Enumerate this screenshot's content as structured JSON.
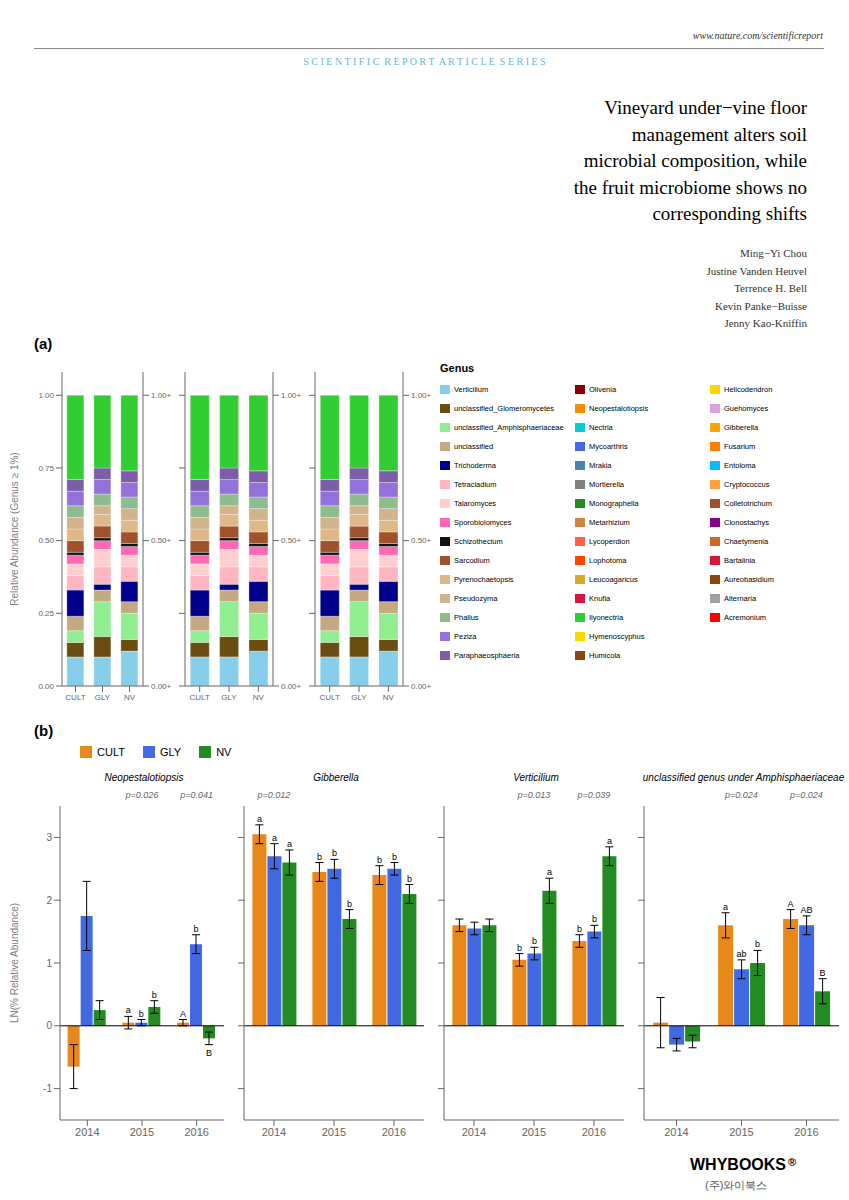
{
  "title": "Vineyard under−vine floor\nmanagement alters soil\nmicrobial composition, while\nthe fruit microbiome shows no\ncorresponding shifts",
  "subtitle": "S C I E N T I F I C  R E P O R T  A R T I C L E  S E R I E S",
  "annotations": {
    "url": "www.nature.com/scientificreport",
    "authors": [
      "Ming−Yi Chou",
      "Justine Vanden Heuvel",
      "Terrence H. Bell",
      "Kevin Panke−Buisse",
      "Jenny Kao-Kniffin"
    ],
    "panel_labels": [
      "(a)",
      "(b)"
    ],
    "branding": [
      "WHYBOOKS",
      "®",
      "(주)와이북스"
    ]
  },
  "genus_legend": {
    "title": "Genus",
    "columns": [
      [
        {
          "name": "Verticilium",
          "color": "#87CEEB"
        },
        {
          "name": "unclassified_Glomeromycetes",
          "color": "#6B4C11"
        },
        {
          "name": "unclassified_Amphisphaeriaceae",
          "color": "#90EE90"
        },
        {
          "name": "unclassified",
          "color": "#C4A882"
        },
        {
          "name": "Trichoderma",
          "color": "#00008B"
        },
        {
          "name": "Tetracladium",
          "color": "#FFB6C1"
        },
        {
          "name": "Talaromyces",
          "color": "#FFCFCF"
        },
        {
          "name": "Sporobiolomyces",
          "color": "#FF69B4"
        },
        {
          "name": "Schizothecium",
          "color": "#111111"
        },
        {
          "name": "Sarcodium",
          "color": "#A0522D"
        },
        {
          "name": "Pyrenochaetopsis",
          "color": "#DEB887"
        },
        {
          "name": "Pseudozyma",
          "color": "#D2B48C"
        },
        {
          "name": "Phallus",
          "color": "#8FBC8F"
        },
        {
          "name": "Peziza",
          "color": "#9370DB"
        },
        {
          "name": "Paraphaeosphaeria",
          "color": "#7B5EA7"
        }
      ],
      [
        {
          "name": "Olivenia",
          "color": "#8B0000"
        },
        {
          "name": "Neopestalotiopsis",
          "color": "#FF8C00"
        },
        {
          "name": "Nectria",
          "color": "#00CED1"
        },
        {
          "name": "Mycoarthris",
          "color": "#4169E1"
        },
        {
          "name": "Mrakia",
          "color": "#4682B4"
        },
        {
          "name": "Mortierella",
          "color": "#808080"
        },
        {
          "name": "Monographella",
          "color": "#228B22"
        },
        {
          "name": "Metarhizium",
          "color": "#CD853F"
        },
        {
          "name": "Lycoperdion",
          "color": "#FF6347"
        },
        {
          "name": "Lophotoma",
          "color": "#FF4500"
        },
        {
          "name": "Leucoagaricus",
          "color": "#DDA830"
        },
        {
          "name": "Knufia",
          "color": "#DC143C"
        },
        {
          "name": "Ilyonectria",
          "color": "#32CD32"
        },
        {
          "name": "Hymenoscyphus",
          "color": "#FFD700"
        },
        {
          "name": "Humicola",
          "color": "#8B4513"
        }
      ],
      [
        {
          "name": "Helicodendron",
          "color": "#FFD700"
        },
        {
          "name": "Guehomyces",
          "color": "#DDA0DD"
        },
        {
          "name": "Gibberella",
          "color": "#FFA500"
        },
        {
          "name": "Fusarium",
          "color": "#FF8000"
        },
        {
          "name": "Entoloma",
          "color": "#00BFFF"
        },
        {
          "name": "Cryptococcus",
          "color": "#FFA040"
        },
        {
          "name": "Colletotrichum",
          "color": "#A0522D"
        },
        {
          "name": "Clonostachys",
          "color": "#8B008B"
        },
        {
          "name": "Chaetymenia",
          "color": "#D2691E"
        },
        {
          "name": "Bartalinia",
          "color": "#DC143C"
        },
        {
          "name": "Aureobasidium",
          "color": "#8B4513"
        },
        {
          "name": "Alternaria",
          "color": "#A0A0A0"
        },
        {
          "name": "Acremonium",
          "color": "#FF0000"
        }
      ]
    ]
  },
  "chart_data": [
    {
      "type": "bar",
      "stacked": true,
      "categories": [
        "CULT",
        "GLY",
        "NV"
      ],
      "ylabel": "Relative Abundance (Genus ≥ 1%)",
      "ylim": [
        0,
        1.08
      ],
      "yticks": [
        {
          "value": 0,
          "label": "0.00"
        },
        {
          "value": 0.25,
          "label": "0.25"
        },
        {
          "value": 0.5,
          "label": "0.50"
        },
        {
          "value": 0.75,
          "label": "0.75"
        },
        {
          "value": 1,
          "label": "1.00"
        }
      ],
      "y2lim": [
        0,
        1.08
      ],
      "y2ticks": [
        {
          "value": 1,
          "label": "1.00+"
        },
        {
          "value": 0.5,
          "label": "0.50+"
        },
        {
          "value": 0,
          "label": "0.00+"
        }
      ],
      "series": [
        {
          "color": "#87CEEB",
          "values": [
            0.1,
            0.1,
            0.12
          ]
        },
        {
          "color": "#6B4C11",
          "values": [
            0.05,
            0.07,
            0.04
          ]
        },
        {
          "color": "#90EE90",
          "values": [
            0.04,
            0.12,
            0.09
          ]
        },
        {
          "color": "#C4A882",
          "values": [
            0.05,
            0.04,
            0.04
          ]
        },
        {
          "color": "#00008B",
          "values": [
            0.09,
            0.02,
            0.07
          ]
        },
        {
          "color": "#FFB6C1",
          "values": [
            0.05,
            0.06,
            0.05
          ]
        },
        {
          "color": "#FFCFCF",
          "values": [
            0.04,
            0.06,
            0.04
          ]
        },
        {
          "color": "#FF69B4",
          "values": [
            0.03,
            0.03,
            0.03
          ]
        },
        {
          "color": "#111111",
          "values": [
            0.01,
            0.01,
            0.01
          ]
        },
        {
          "color": "#A0522D",
          "values": [
            0.04,
            0.04,
            0.04
          ]
        },
        {
          "color": "#DEB887",
          "values": [
            0.04,
            0.04,
            0.04
          ]
        },
        {
          "color": "#D2B48C",
          "values": [
            0.04,
            0.03,
            0.04
          ]
        },
        {
          "color": "#8FBC8F",
          "values": [
            0.04,
            0.04,
            0.04
          ]
        },
        {
          "color": "#9370DB",
          "values": [
            0.05,
            0.05,
            0.05
          ]
        },
        {
          "color": "#7B5EA7",
          "values": [
            0.04,
            0.04,
            0.04
          ]
        },
        {
          "color": "#32CD32",
          "values": [
            0.29,
            0.25,
            0.26
          ]
        }
      ]
    },
    {
      "type": "bar",
      "stacked": true,
      "tick_labels": "x",
      "categories": [
        "CULT",
        "GLY",
        "NV"
      ],
      "ylim": [
        0,
        1.08
      ],
      "yticks": [
        {
          "value": 0,
          "label": "0.00"
        },
        {
          "value": 0.25,
          "label": "0.25"
        },
        {
          "value": 0.5,
          "label": "0.50"
        },
        {
          "value": 0.75,
          "label": "0.75"
        },
        {
          "value": 1,
          "label": "1.00"
        }
      ],
      "y2lim": [
        0,
        1.08
      ],
      "y2ticks": [
        {
          "value": 1,
          "label": "1.00+"
        },
        {
          "value": 0.5,
          "label": "0.50+"
        },
        {
          "value": 0,
          "label": "0.00+"
        }
      ],
      "series": [
        {
          "color": "#87CEEB",
          "values": [
            0.1,
            0.1,
            0.12
          ]
        },
        {
          "color": "#6B4C11",
          "values": [
            0.05,
            0.07,
            0.04
          ]
        },
        {
          "color": "#90EE90",
          "values": [
            0.04,
            0.12,
            0.09
          ]
        },
        {
          "color": "#C4A882",
          "values": [
            0.05,
            0.04,
            0.04
          ]
        },
        {
          "color": "#00008B",
          "values": [
            0.09,
            0.02,
            0.07
          ]
        },
        {
          "color": "#FFB6C1",
          "values": [
            0.05,
            0.06,
            0.05
          ]
        },
        {
          "color": "#FFCFCF",
          "values": [
            0.04,
            0.06,
            0.04
          ]
        },
        {
          "color": "#FF69B4",
          "values": [
            0.03,
            0.03,
            0.03
          ]
        },
        {
          "color": "#111111",
          "values": [
            0.01,
            0.01,
            0.01
          ]
        },
        {
          "color": "#A0522D",
          "values": [
            0.04,
            0.04,
            0.04
          ]
        },
        {
          "color": "#DEB887",
          "values": [
            0.04,
            0.04,
            0.04
          ]
        },
        {
          "color": "#D2B48C",
          "values": [
            0.04,
            0.03,
            0.04
          ]
        },
        {
          "color": "#8FBC8F",
          "values": [
            0.04,
            0.04,
            0.04
          ]
        },
        {
          "color": "#9370DB",
          "values": [
            0.05,
            0.05,
            0.05
          ]
        },
        {
          "color": "#7B5EA7",
          "values": [
            0.04,
            0.04,
            0.04
          ]
        },
        {
          "color": "#32CD32",
          "values": [
            0.29,
            0.25,
            0.26
          ]
        }
      ]
    },
    {
      "type": "bar",
      "stacked": true,
      "tick_labels": "x",
      "categories": [
        "CULT",
        "GLY",
        "NV"
      ],
      "ylim": [
        0,
        1.08
      ],
      "yticks": [
        {
          "value": 0,
          "label": "0.00"
        },
        {
          "value": 0.25,
          "label": "0.25"
        },
        {
          "value": 0.5,
          "label": "0.50"
        },
        {
          "value": 0.75,
          "label": "0.75"
        },
        {
          "value": 1,
          "label": "1.00"
        }
      ],
      "y2lim": [
        0,
        1.08
      ],
      "y2ticks": [
        {
          "value": 1,
          "label": "1.00+"
        },
        {
          "value": 0.5,
          "label": "0.50+"
        },
        {
          "value": 0,
          "label": "0.00+"
        }
      ],
      "series": [
        {
          "color": "#87CEEB",
          "values": [
            0.1,
            0.1,
            0.12
          ]
        },
        {
          "color": "#6B4C11",
          "values": [
            0.05,
            0.07,
            0.04
          ]
        },
        {
          "color": "#90EE90",
          "values": [
            0.04,
            0.12,
            0.09
          ]
        },
        {
          "color": "#C4A882",
          "values": [
            0.05,
            0.04,
            0.04
          ]
        },
        {
          "color": "#00008B",
          "values": [
            0.09,
            0.02,
            0.07
          ]
        },
        {
          "color": "#FFB6C1",
          "values": [
            0.05,
            0.06,
            0.05
          ]
        },
        {
          "color": "#FFCFCF",
          "values": [
            0.04,
            0.06,
            0.04
          ]
        },
        {
          "color": "#FF69B4",
          "values": [
            0.03,
            0.03,
            0.03
          ]
        },
        {
          "color": "#111111",
          "values": [
            0.01,
            0.01,
            0.01
          ]
        },
        {
          "color": "#A0522D",
          "values": [
            0.04,
            0.04,
            0.04
          ]
        },
        {
          "color": "#DEB887",
          "values": [
            0.04,
            0.04,
            0.04
          ]
        },
        {
          "color": "#D2B48C",
          "values": [
            0.04,
            0.03,
            0.04
          ]
        },
        {
          "color": "#8FBC8F",
          "values": [
            0.04,
            0.04,
            0.04
          ]
        },
        {
          "color": "#9370DB",
          "values": [
            0.05,
            0.05,
            0.05
          ]
        },
        {
          "color": "#7B5EA7",
          "values": [
            0.04,
            0.04,
            0.04
          ]
        },
        {
          "color": "#32CD32",
          "values": [
            0.29,
            0.25,
            0.26
          ]
        }
      ]
    },
    {
      "type": "bar",
      "title": "Neopestalotiopsis",
      "legend": "upper left",
      "categories": [
        "2014",
        "2015",
        "2016"
      ],
      "ylabel": "LN(% Relative Abundance)",
      "ylim": [
        -1.5,
        3.5
      ],
      "yticks": [
        -1,
        0,
        1,
        2,
        3
      ],
      "p_values": [
        null,
        "p=0.026",
        "p=0.041"
      ],
      "series": [
        {
          "name": "CULT",
          "color": "#E8871A",
          "values": [
            -0.65,
            0.05,
            0.05
          ],
          "errors": [
            0.35,
            0.1,
            0.05
          ],
          "letters": [
            null,
            "a",
            "A"
          ]
        },
        {
          "name": "GLY",
          "color": "#4169E1",
          "values": [
            1.75,
            0.05,
            1.3
          ],
          "errors": [
            0.55,
            0.05,
            0.15
          ],
          "letters": [
            null,
            "b",
            "b"
          ]
        },
        {
          "name": "NV",
          "color": "#228B22",
          "values": [
            0.25,
            0.3,
            -0.2
          ],
          "errors": [
            0.15,
            0.1,
            0.1
          ],
          "letters": [
            null,
            "b",
            "B"
          ]
        }
      ]
    },
    {
      "type": "bar",
      "title": "Gibberella",
      "tick_labels": "x",
      "categories": [
        "2014",
        "2015",
        "2016"
      ],
      "ylim": [
        -1.5,
        3.5
      ],
      "yticks": [
        -1,
        0,
        1,
        2,
        3
      ],
      "p_values": [
        "p=0.012",
        null,
        null
      ],
      "series": [
        {
          "name": "CULT",
          "color": "#E8871A",
          "values": [
            3.05,
            2.45,
            2.4
          ],
          "errors": [
            0.15,
            0.15,
            0.15
          ],
          "letters": [
            "a",
            "b",
            "b"
          ]
        },
        {
          "name": "GLY",
          "color": "#4169E1",
          "values": [
            2.7,
            2.5,
            2.5
          ],
          "errors": [
            0.2,
            0.15,
            0.1
          ],
          "letters": [
            "a",
            "b",
            "b"
          ]
        },
        {
          "name": "NV",
          "color": "#228B22",
          "values": [
            2.6,
            1.7,
            2.1
          ],
          "errors": [
            0.2,
            0.15,
            0.15
          ],
          "letters": [
            "a",
            "b",
            "b"
          ]
        }
      ]
    },
    {
      "type": "bar",
      "title": "Verticilium",
      "tick_labels": "x",
      "categories": [
        "2014",
        "2015",
        "2016"
      ],
      "ylim": [
        -1.5,
        3.5
      ],
      "yticks": [
        -1,
        0,
        1,
        2,
        3
      ],
      "p_values": [
        null,
        "p=0.013",
        "p=0.039"
      ],
      "series": [
        {
          "name": "CULT",
          "color": "#E8871A",
          "values": [
            1.6,
            1.05,
            1.35
          ],
          "errors": [
            0.1,
            0.1,
            0.1
          ],
          "letters": [
            null,
            "b",
            "b"
          ]
        },
        {
          "name": "GLY",
          "color": "#4169E1",
          "values": [
            1.55,
            1.15,
            1.5
          ],
          "errors": [
            0.1,
            0.1,
            0.1
          ],
          "letters": [
            null,
            "b",
            "b"
          ]
        },
        {
          "name": "NV",
          "color": "#228B22",
          "values": [
            1.6,
            2.15,
            2.7
          ],
          "errors": [
            0.1,
            0.2,
            0.15
          ],
          "letters": [
            null,
            "a",
            "a"
          ]
        }
      ]
    },
    {
      "type": "bar",
      "title": "unclassified genus under Amphisphaeriaceae",
      "tick_labels": "x",
      "categories": [
        "2014",
        "2015",
        "2016"
      ],
      "ylim": [
        -1.5,
        3.5
      ],
      "yticks": [
        -1,
        0,
        1,
        2,
        3
      ],
      "p_values": [
        null,
        "p=0.024",
        "p=0.024"
      ],
      "series": [
        {
          "name": "CULT",
          "color": "#E8871A",
          "values": [
            0.05,
            1.6,
            1.7
          ],
          "errors": [
            0.4,
            0.2,
            0.15
          ],
          "letters": [
            null,
            "a",
            "A"
          ]
        },
        {
          "name": "GLY",
          "color": "#4169E1",
          "values": [
            -0.3,
            0.9,
            1.6
          ],
          "errors": [
            0.1,
            0.15,
            0.15
          ],
          "letters": [
            null,
            "ab",
            "AB"
          ]
        },
        {
          "name": "NV",
          "color": "#228B22",
          "values": [
            -0.25,
            1.0,
            0.55
          ],
          "errors": [
            0.1,
            0.2,
            0.2
          ],
          "letters": [
            null,
            "b",
            "B"
          ]
        }
      ]
    }
  ]
}
